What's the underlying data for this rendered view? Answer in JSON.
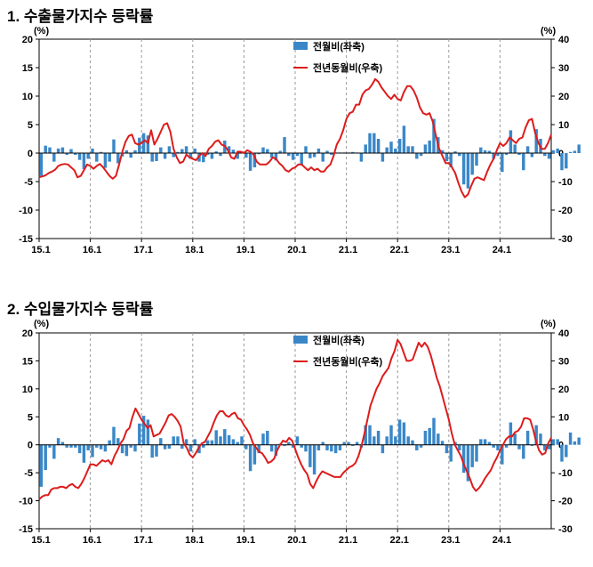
{
  "chart_data": [
    {
      "type": "bar",
      "title": "1. 수출물가지수 등락률",
      "left_unit": "(%)",
      "right_unit": "(%)",
      "ylim_left": [
        -15,
        20
      ],
      "ylim_right": [
        -30,
        40
      ],
      "yticks_left": [
        "20",
        "15",
        "10",
        "5",
        "0",
        "-5",
        "-10",
        "-15"
      ],
      "yticks_right": [
        "40",
        "30",
        "20",
        "10",
        "0",
        "-10",
        "-20",
        "-30"
      ],
      "xticks": [
        "15.1",
        "16.1",
        "17.1",
        "18.1",
        "19.1",
        "20.1",
        "21.1",
        "22.1",
        "23.1",
        "24.1"
      ],
      "legend_placement": "top-center",
      "colors": {
        "bar": "#3a87c8",
        "line": "#dd1c1c"
      },
      "series": [
        {
          "name": "전월비(좌축)",
          "kind": "bar",
          "axis": "left",
          "values": [
            -4.0,
            1.3,
            1.0,
            -1.5,
            0.8,
            1.0,
            -0.3,
            0.7,
            -0.3,
            -1.2,
            -2.8,
            -1.0,
            0.8,
            -1.5,
            0.2,
            -2.6,
            -1.5,
            2.4,
            -1.8,
            -0.6,
            0.5,
            -0.8,
            0.5,
            2.7,
            3.5,
            3.1,
            -1.5,
            -1.4,
            1.0,
            -1.0,
            1.2,
            -0.7,
            0.2,
            0.7,
            1.2,
            -1.0,
            0.8,
            -1.5,
            -1.6,
            -0.3,
            -1.0,
            0.3,
            -0.5,
            2.2,
            1.2,
            0.6,
            -1.0,
            0.3,
            -0.8,
            -3.1,
            -2.5,
            -0.2,
            1.0,
            0.7,
            -0.8,
            -1.3,
            0.4,
            2.8,
            -0.5,
            -1.2,
            -0.5,
            -2.0,
            1.2,
            -0.9,
            -0.7,
            0.8,
            -1.5,
            0.4,
            -0.3,
            0.1,
            0.1,
            0.1,
            0.1,
            0.2,
            0.1,
            -1.5,
            1.5,
            3.5,
            3.5,
            2.5,
            -1.5,
            1.0,
            2.0,
            0.8,
            2.5,
            4.8,
            1.2,
            1.2,
            -1.0,
            -0.5,
            1.5,
            2.2,
            6.0,
            2.8,
            0.5,
            -1.4,
            -2.5,
            0.3,
            -0.5,
            -5.5,
            -6.2,
            -3.8,
            -2.2,
            1.0,
            0.5,
            0.4,
            -1.0,
            -0.5,
            -3.3,
            -0.3,
            4.0,
            1.5,
            -0.3,
            -3.0,
            1.2,
            -0.7,
            4.2,
            2.5,
            -0.5,
            -1.0,
            0.5,
            0.8,
            -3.0,
            -2.7,
            0.2,
            0.4,
            1.5
          ]
        },
        {
          "name": "전년동월비(우축)",
          "kind": "line",
          "axis": "right",
          "values": [
            -8.5,
            -8.2,
            -7.8,
            -7.0,
            -6.5,
            -5.8,
            -4.5,
            -4.0,
            -3.8,
            -4.0,
            -5.0,
            -6.0,
            -8.5,
            -8.0,
            -6.0,
            -4.0,
            -4.5,
            -5.5,
            -4.5,
            -3.8,
            -5.0,
            -6.5,
            -8.0,
            -9.0,
            -8.0,
            -4.0,
            0.5,
            4.0,
            6.0,
            6.5,
            3.5,
            3.0,
            3.5,
            4.5,
            3.5,
            8.0,
            3.0,
            5.0,
            7.5,
            10.0,
            10.5,
            7.5,
            1.5,
            -1.5,
            -3.5,
            -3.0,
            -0.5,
            -1.5,
            -2.0,
            -2.5,
            -1.0,
            0.0,
            -1.0,
            1.5,
            2.5,
            4.0,
            4.5,
            3.0,
            2.5,
            1.0,
            -1.5,
            -2.0,
            0.5,
            0.5,
            0.0,
            1.0,
            0.5,
            -0.5,
            -3.0,
            -4.0,
            -4.0,
            -4.0,
            -3.0,
            -1.5,
            -2.0,
            -3.5,
            -4.5,
            -6.0,
            -6.5,
            -5.5,
            -5.0,
            -4.0,
            -4.0,
            -5.0,
            -6.0,
            -5.0,
            -6.0,
            -5.5,
            -6.5,
            -6.5,
            -5.0,
            -4.0,
            -1.0,
            3.0,
            5.0,
            8.0,
            12.0,
            14.0,
            14.5,
            17.0,
            17.0,
            20.5,
            22.0,
            22.5,
            24.0,
            26.0,
            25.0,
            23.0,
            21.5,
            20.0,
            19.0,
            20.5,
            19.0,
            18.5,
            21.5,
            23.5,
            23.5,
            22.0,
            19.5,
            16.0,
            14.0,
            13.5,
            14.0,
            11.0,
            6.0,
            1.5,
            -1.0,
            -3.5,
            -3.5,
            -5.0,
            -7.0,
            -10.5,
            -13.5,
            -15.5,
            -14.5,
            -11.5,
            -9.0,
            -8.5,
            -9.0,
            -9.5,
            -6.5,
            -4.0,
            -2.0,
            1.0,
            3.5,
            2.5,
            3.5,
            5.5,
            4.5,
            3.5,
            5.0,
            5.5,
            9.0,
            11.5,
            12.0,
            7.0,
            3.5,
            1.5,
            1.5,
            3.5,
            6.5
          ]
        }
      ]
    },
    {
      "type": "bar",
      "title": "2. 수입물가지수 등락률",
      "left_unit": "(%)",
      "right_unit": "(%)",
      "ylim_left": [
        -15,
        20
      ],
      "ylim_right": [
        -30,
        40
      ],
      "yticks_left": [
        "20",
        "15",
        "10",
        "5",
        "0",
        "-5",
        "-10",
        "-15"
      ],
      "yticks_right": [
        "40",
        "30",
        "20",
        "10",
        "0",
        "-10",
        "-20",
        "-30"
      ],
      "xticks": [
        "15.1",
        "16.1",
        "17.1",
        "18.1",
        "19.1",
        "20.1",
        "21.1",
        "22.1",
        "23.1",
        "24.1"
      ],
      "legend_placement": "top-center",
      "colors": {
        "bar": "#3a87c8",
        "line": "#dd1c1c"
      },
      "series": [
        {
          "name": "전월비(좌축)",
          "kind": "bar",
          "axis": "left",
          "values": [
            -7.5,
            -4.5,
            -0.5,
            -2.5,
            1.2,
            0.5,
            -0.5,
            -0.5,
            -0.5,
            -1.5,
            -3.2,
            -1.0,
            -2.2,
            -0.5,
            -0.8,
            -1.2,
            0.8,
            3.2,
            1.2,
            -1.5,
            -2.0,
            -0.5,
            -1.2,
            3.8,
            5.2,
            4.5,
            -2.3,
            -2.1,
            1.2,
            -0.8,
            -0.7,
            1.5,
            1.5,
            -0.7,
            1.0,
            -1.2,
            1.0,
            -1.5,
            -0.5,
            0.8,
            0.8,
            2.6,
            1.5,
            2.8,
            1.7,
            1.0,
            0.5,
            1.5,
            -0.8,
            -4.7,
            -3.5,
            -1.5,
            2.0,
            2.5,
            -1.2,
            -2.0,
            0.2,
            -0.2,
            0.5,
            -0.5,
            1.5,
            -0.5,
            -1.2,
            -4.0,
            -5.3,
            -1.0,
            0.5,
            -1.0,
            -1.2,
            -1.5,
            -1.0,
            0.5,
            0.5,
            -0.2,
            0.5,
            -0.5,
            3.5,
            3.5,
            1.5,
            2.5,
            -1.5,
            1.5,
            3.5,
            1.5,
            4.5,
            4.0,
            1.5,
            0.8,
            -1.0,
            -0.5,
            2.5,
            3.0,
            4.8,
            2.0,
            0.7,
            -1.5,
            -3.0,
            0.5,
            -1.0,
            -5.0,
            -6.5,
            -4.0,
            -3.0,
            1.0,
            1.0,
            0.5,
            -0.5,
            -1.0,
            -3.5,
            -0.5,
            4.0,
            2.0,
            -0.8,
            -2.5,
            2.5,
            -0.2,
            3.5,
            2.0,
            -1.0,
            -0.8,
            1.0,
            1.0,
            -3.0,
            -2.2,
            2.2,
            0.6,
            1.3
          ]
        },
        {
          "name": "전년동월비(우축)",
          "kind": "line",
          "axis": "right",
          "values": [
            -19.5,
            -18.5,
            -18.0,
            -18.0,
            -16.0,
            -15.5,
            -15.5,
            -15.0,
            -15.0,
            -15.5,
            -14.5,
            -14.0,
            -15.0,
            -15.5,
            -14.0,
            -12.0,
            -9.5,
            -7.0,
            -7.0,
            -7.5,
            -6.5,
            -5.5,
            -6.0,
            -5.5,
            -7.0,
            -4.0,
            -2.0,
            0.5,
            2.0,
            5.0,
            6.0,
            10.0,
            13.0,
            11.0,
            9.0,
            7.5,
            6.0,
            7.0,
            3.0,
            3.5,
            4.0,
            6.0,
            8.0,
            10.5,
            11.0,
            10.0,
            8.5,
            6.5,
            0.5,
            -1.0,
            -3.5,
            -4.5,
            -3.0,
            -1.0,
            0.5,
            1.0,
            3.0,
            5.0,
            8.0,
            10.5,
            12.0,
            12.0,
            10.5,
            10.0,
            11.0,
            11.5,
            9.5,
            9.0,
            7.0,
            5.5,
            3.5,
            0.5,
            -1.0,
            -2.5,
            -3.0,
            -4.5,
            -6.5,
            -6.0,
            -5.0,
            -2.0,
            0.0,
            1.5,
            1.0,
            2.5,
            1.5,
            -1.5,
            -4.5,
            -7.0,
            -9.0,
            -10.5,
            -14.0,
            -15.5,
            -13.0,
            -11.0,
            -9.5,
            -10.0,
            -10.5,
            -11.0,
            -11.5,
            -11.5,
            -11.5,
            -10.0,
            -9.0,
            -8.0,
            -7.5,
            -6.5,
            -4.0,
            -0.5,
            4.0,
            9.0,
            14.0,
            17.0,
            20.0,
            22.0,
            24.5,
            26.0,
            27.5,
            31.0,
            33.5,
            37.5,
            36.0,
            33.0,
            30.0,
            30.0,
            30.5,
            33.5,
            36.5,
            35.0,
            36.5,
            35.0,
            32.0,
            28.0,
            24.0,
            21.0,
            17.0,
            13.0,
            9.0,
            4.0,
            0.0,
            -2.0,
            -4.0,
            -7.0,
            -9.5,
            -12.0,
            -15.0,
            -16.5,
            -15.5,
            -14.0,
            -12.0,
            -10.5,
            -9.0,
            -6.5,
            -4.5,
            -2.0,
            0.0,
            2.0,
            3.0,
            3.0,
            4.5,
            5.0,
            6.5,
            9.5,
            9.5,
            9.0,
            5.5,
            1.0,
            -2.0,
            -3.5,
            -3.0,
            0.5,
            2.5
          ]
        }
      ]
    }
  ]
}
